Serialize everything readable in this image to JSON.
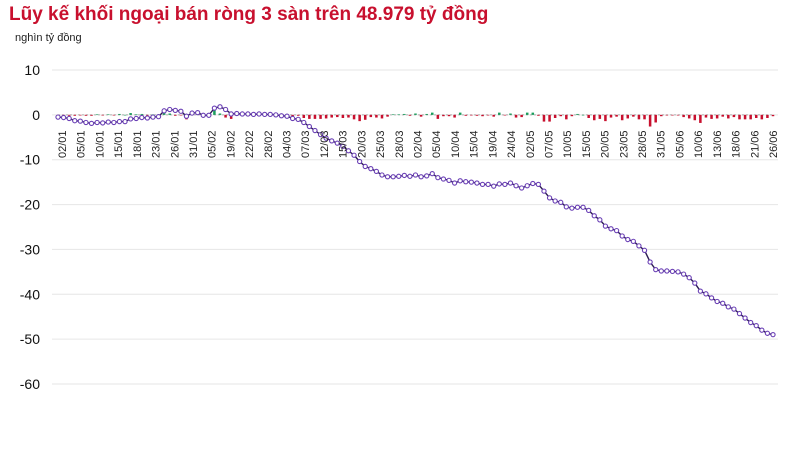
{
  "chart_data": {
    "type": "bar+line",
    "title": "Lũy kế khối ngoại bán ròng 3 sàn trên 48.979 tỷ đồng",
    "unit": "nghìn tỷ đồng",
    "ylim": [
      -60,
      10
    ],
    "yticks": [
      10,
      0,
      -10,
      -20,
      -30,
      -40,
      -50,
      -60
    ],
    "grid": true,
    "xtick_labels": [
      "02/01",
      "05/01",
      "10/01",
      "15/01",
      "18/01",
      "23/01",
      "26/01",
      "31/01",
      "05/02",
      "19/02",
      "22/02",
      "28/02",
      "04/03",
      "07/03",
      "12/03",
      "15/03",
      "20/03",
      "25/03",
      "28/03",
      "02/04",
      "05/04",
      "10/04",
      "15/04",
      "19/04",
      "24/04",
      "02/05",
      "07/05",
      "10/05",
      "15/05",
      "20/05",
      "23/05",
      "28/05",
      "31/05",
      "05/06",
      "10/06",
      "13/06",
      "18/06",
      "21/06",
      "26/06"
    ],
    "series": [
      {
        "type": "line",
        "values": [
          -0.5,
          -0.6,
          -0.8,
          -1.3,
          -1.4,
          -1.7,
          -1.9,
          -1.7,
          -1.8,
          -1.6,
          -1.7,
          -1.5,
          -1.5,
          -0.9,
          -0.8,
          -0.6,
          -0.7,
          -0.5,
          -0.4,
          0.9,
          1.2,
          1.0,
          0.8,
          -0.3,
          0.4,
          0.5,
          -0.1,
          -0.1,
          1.5,
          1.8,
          1.2,
          0.2,
          0.3,
          0.2,
          0.2,
          0.1,
          0.2,
          0.1,
          0.1,
          0.0,
          -0.2,
          -0.3,
          -0.8,
          -1.0,
          -1.7,
          -2.6,
          -3.5,
          -4.4,
          -5.2,
          -5.8,
          -6.3,
          -7.0,
          -8.0,
          -9.0,
          -10.4,
          -11.5,
          -12.0,
          -12.6,
          -13.4,
          -13.8,
          -13.8,
          -13.7,
          -13.5,
          -13.7,
          -13.4,
          -13.8,
          -13.6,
          -13.1,
          -14.0,
          -14.3,
          -14.6,
          -15.2,
          -14.7,
          -14.9,
          -15.0,
          -15.2,
          -15.5,
          -15.5,
          -15.9,
          -15.4,
          -15.5,
          -15.2,
          -15.8,
          -16.3,
          -15.8,
          -15.3,
          -15.5,
          -17.0,
          -18.5,
          -19.2,
          -19.5,
          -20.5,
          -20.8,
          -20.6,
          -20.6,
          -21.3,
          -22.5,
          -23.4,
          -24.8,
          -25.4,
          -25.8,
          -27.0,
          -27.8,
          -28.2,
          -29.2,
          -30.2,
          -32.8,
          -34.5,
          -34.8,
          -34.8,
          -34.9,
          -35.0,
          -35.5,
          -36.3,
          -37.5,
          -39.3,
          -39.9,
          -40.8,
          -41.6,
          -42.0,
          -42.8,
          -43.3,
          -44.3,
          -45.3,
          -46.3,
          -47.0,
          -48.0,
          -48.7,
          -49.0
        ]
      },
      {
        "type": "bar",
        "values": [
          -0.1,
          -0.1,
          -0.2,
          -0.2,
          -0.1,
          -0.2,
          -0.2,
          0.1,
          -0.1,
          0.1,
          -0.1,
          0.2,
          0.0,
          0.4,
          0.1,
          0.2,
          -0.1,
          0.1,
          0.1,
          1.1,
          0.3,
          -0.2,
          -0.1,
          -1.0,
          0.7,
          0.1,
          -0.6,
          0.0,
          1.3,
          0.3,
          -0.6,
          -0.9,
          0.1,
          -0.1,
          0.0,
          -0.1,
          0.1,
          -0.1,
          0.0,
          -0.1,
          -0.2,
          -0.1,
          -0.5,
          -0.2,
          -0.7,
          -0.9,
          -0.9,
          -0.9,
          -0.8,
          -0.6,
          -0.5,
          -0.7,
          -0.6,
          -1.0,
          -1.4,
          -1.1,
          -0.5,
          -0.6,
          -0.8,
          -0.4,
          0.1,
          0.1,
          0.2,
          -0.2,
          0.3,
          -0.4,
          0.2,
          0.5,
          -0.9,
          -0.3,
          -0.3,
          -0.6,
          0.5,
          -0.2,
          -0.1,
          -0.2,
          -0.3,
          -0.1,
          -0.4,
          0.5,
          -0.1,
          0.3,
          -0.6,
          -0.5,
          0.5,
          0.5,
          -0.2,
          -1.5,
          -1.5,
          -0.7,
          -0.3,
          -1.0,
          -0.3,
          0.2,
          0.0,
          -0.7,
          -1.2,
          -0.9,
          -1.4,
          -0.6,
          -0.4,
          -1.2,
          -0.8,
          -0.4,
          -1.0,
          -1.0,
          -2.6,
          -1.7,
          -0.3,
          -0.1,
          -0.1,
          -0.1,
          -0.5,
          -0.8,
          -1.2,
          -1.8,
          -0.6,
          -0.9,
          -0.8,
          -0.4,
          -0.8,
          -0.5,
          -1.0,
          -1.0,
          -1.0,
          -0.7,
          -1.0,
          -0.7,
          -0.3
        ],
        "colors": {
          "positive": "#1a9e5c",
          "negative": "#c8102e"
        }
      }
    ]
  }
}
